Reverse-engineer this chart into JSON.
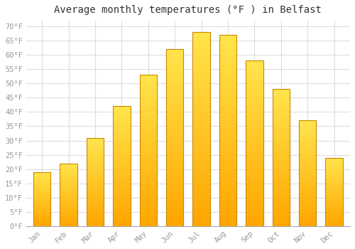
{
  "title": "Average monthly temperatures (°F ) in Belfast",
  "months": [
    "Jan",
    "Feb",
    "Mar",
    "Apr",
    "May",
    "Jun",
    "Jul",
    "Aug",
    "Sep",
    "Oct",
    "Nov",
    "Dec"
  ],
  "values": [
    19,
    22,
    31,
    42,
    53,
    62,
    68,
    67,
    58,
    48,
    37,
    24
  ],
  "bar_color_top": "#FFD060",
  "bar_color_bottom": "#FFA500",
  "bar_edge_color": "#CC8800",
  "background_color": "#FFFFFF",
  "grid_color": "#DDDDDD",
  "text_color": "#999999",
  "title_color": "#333333",
  "ylim": [
    0,
    72
  ],
  "yticks": [
    0,
    5,
    10,
    15,
    20,
    25,
    30,
    35,
    40,
    45,
    50,
    55,
    60,
    65,
    70
  ],
  "title_fontsize": 10,
  "tick_fontsize": 7.5,
  "bar_width": 0.65
}
